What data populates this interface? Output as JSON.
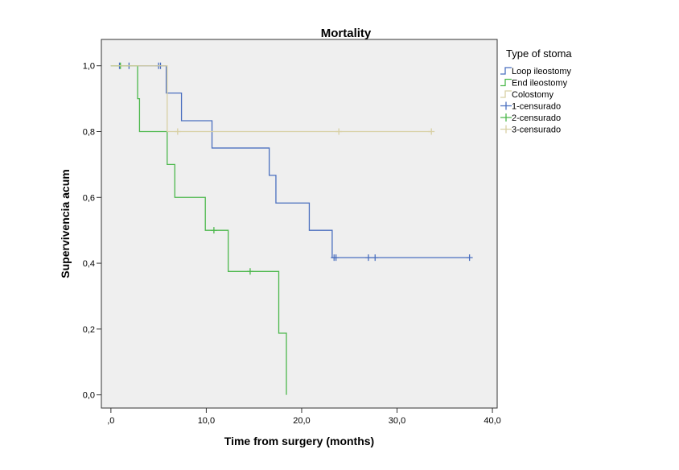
{
  "chart_data": {
    "type": "line",
    "title": "Mortality",
    "xlabel": "Time from surgery (months)",
    "ylabel": "Supervivencia acum",
    "xlim": [
      -1,
      40.5
    ],
    "ylim": [
      -0.04,
      1.08
    ],
    "x_ticks": [
      0,
      10,
      20,
      30,
      40
    ],
    "x_tick_labels": [
      ",0",
      "10,0",
      "20,0",
      "30,0",
      "40,0"
    ],
    "y_ticks": [
      0,
      0.2,
      0.4,
      0.6,
      0.8,
      1.0
    ],
    "y_tick_labels": [
      "0,0",
      "0,2",
      "0,4",
      "0,6",
      "0,8",
      "1,0"
    ],
    "grid": false,
    "legend_title": "Type of stoma",
    "legend_position": "right",
    "legend_labels": [
      "Loop ileostomy",
      "End ileostomy",
      "Colostomy",
      "1-censurado",
      "2-censurado",
      "3-censurado"
    ],
    "series": [
      {
        "name": "Loop ileostomy",
        "color": "#4a6fbf",
        "steps": [
          [
            0,
            1.0
          ],
          [
            5.8,
            0.917
          ],
          [
            7.4,
            0.833
          ],
          [
            10.6,
            0.75
          ],
          [
            16.6,
            0.667
          ],
          [
            17.3,
            0.583
          ],
          [
            20.8,
            0.5
          ],
          [
            23.2,
            0.417
          ],
          [
            37.6,
            0.417
          ]
        ],
        "censored": [
          [
            0.9,
            1.0
          ],
          [
            1.9,
            1.0
          ],
          [
            5.0,
            1.0
          ],
          [
            5.2,
            1.0
          ],
          [
            23.4,
            0.417
          ],
          [
            23.6,
            0.417
          ],
          [
            27.0,
            0.417
          ],
          [
            27.7,
            0.417
          ],
          [
            37.6,
            0.417
          ]
        ]
      },
      {
        "name": "End ileostomy",
        "color": "#4cb84c",
        "steps": [
          [
            0,
            1.0
          ],
          [
            2.8,
            0.9
          ],
          [
            3.0,
            0.8
          ],
          [
            5.9,
            0.7
          ],
          [
            6.7,
            0.6
          ],
          [
            9.9,
            0.5
          ],
          [
            12.3,
            0.375
          ],
          [
            17.6,
            0.1875
          ],
          [
            18.4,
            0.0
          ]
        ],
        "censored": [
          [
            1.0,
            1.0
          ],
          [
            10.8,
            0.5
          ],
          [
            14.6,
            0.375
          ]
        ]
      },
      {
        "name": "Colostomy",
        "color": "#d8d0a4",
        "steps": [
          [
            0,
            1.0
          ],
          [
            5.9,
            0.8
          ],
          [
            33.6,
            0.8
          ]
        ],
        "censored": [
          [
            7.0,
            0.8
          ],
          [
            23.9,
            0.8
          ],
          [
            33.6,
            0.8
          ]
        ]
      }
    ]
  }
}
